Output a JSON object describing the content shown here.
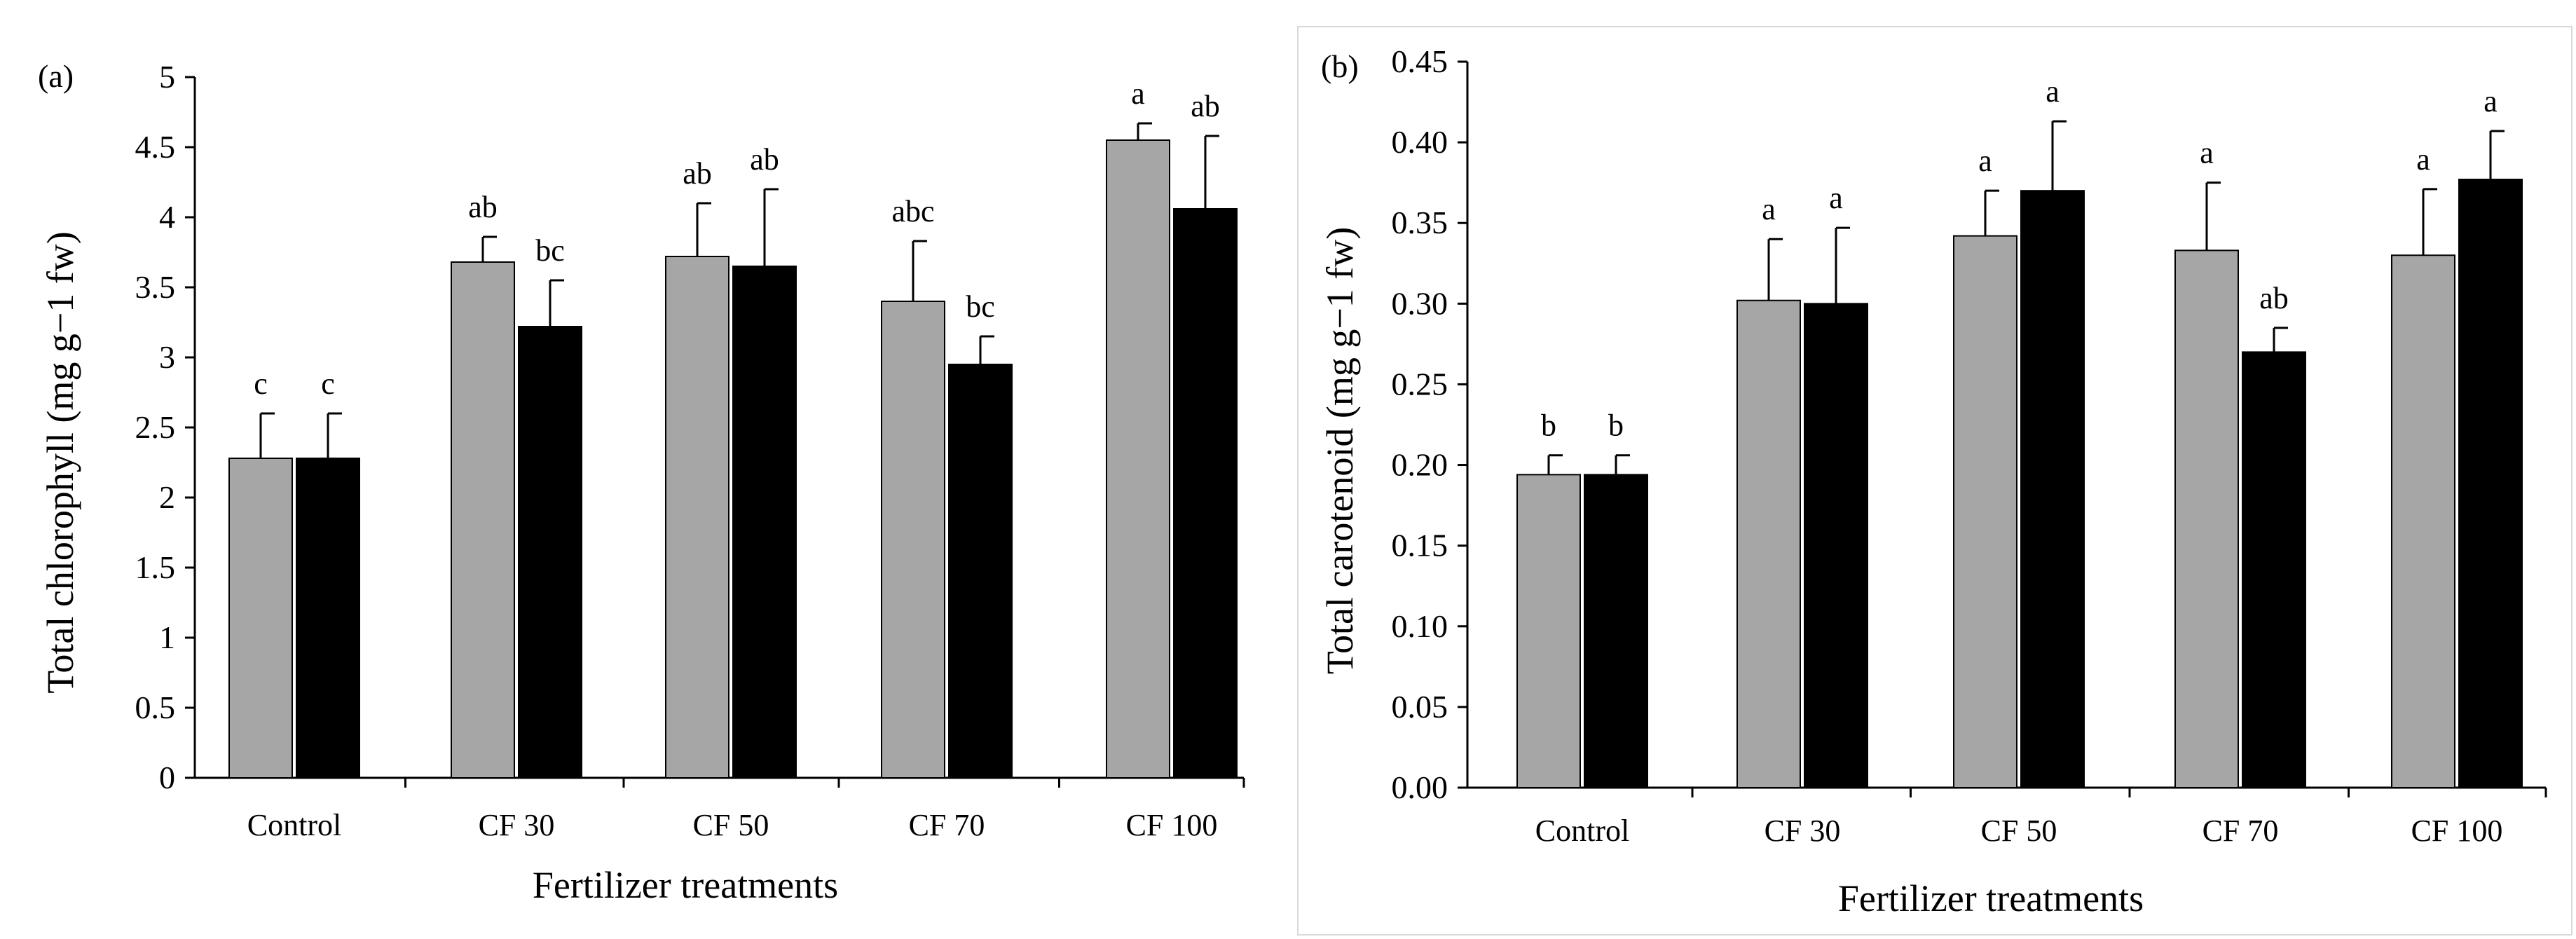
{
  "colors": {
    "series_grey": "#a6a6a6",
    "series_black": "#000000",
    "bar_outline": "#000000"
  },
  "chart_data": [
    {
      "type": "bar",
      "panel_label": "(a)",
      "title": "",
      "xlabel": "Fertilizer treatments",
      "ylabel": "Total chlorophyll (mg g−1 fw)",
      "categories": [
        "Control",
        "CF 30",
        "CF 50",
        "CF 70",
        "CF 100"
      ],
      "ylim": [
        0,
        5
      ],
      "yticks": [
        0,
        0.5,
        1,
        1.5,
        2,
        2.5,
        3,
        3.5,
        4,
        4.5,
        5
      ],
      "ytick_labels": [
        "0",
        "0.5",
        "1",
        "1.5",
        "2",
        "2.5",
        "3",
        "3.5",
        "4",
        "4.5",
        "5"
      ],
      "series": [
        {
          "name": "grey",
          "color": "#a6a6a6",
          "values": [
            2.28,
            3.68,
            3.72,
            3.4,
            4.55
          ],
          "errors": [
            0.32,
            0.18,
            0.38,
            0.43,
            0.12
          ],
          "labels": [
            "c",
            "ab",
            "ab",
            "abc",
            "a"
          ]
        },
        {
          "name": "black",
          "color": "#000000",
          "values": [
            2.28,
            3.22,
            3.65,
            2.95,
            4.06
          ],
          "errors": [
            0.32,
            0.33,
            0.55,
            0.2,
            0.52
          ],
          "labels": [
            "c",
            "bc",
            "ab",
            "bc",
            "ab"
          ]
        }
      ]
    },
    {
      "type": "bar",
      "panel_label": "(b)",
      "title": "",
      "xlabel": "Fertilizer treatments",
      "ylabel": "Total carotenoid (mg g−1 fw)",
      "categories": [
        "Control",
        "CF 30",
        "CF 50",
        "CF 70",
        "CF 100"
      ],
      "ylim": [
        0,
        0.45
      ],
      "yticks": [
        0,
        0.05,
        0.1,
        0.15,
        0.2,
        0.25,
        0.3,
        0.35,
        0.4,
        0.45
      ],
      "ytick_labels": [
        "0.00",
        "0.05",
        "0.10",
        "0.15",
        "0.20",
        "0.25",
        "0.30",
        "0.35",
        "0.40",
        "0.45"
      ],
      "series": [
        {
          "name": "grey",
          "color": "#a6a6a6",
          "values": [
            0.194,
            0.302,
            0.342,
            0.333,
            0.33
          ],
          "errors": [
            0.012,
            0.038,
            0.028,
            0.042,
            0.041
          ],
          "labels": [
            "b",
            "a",
            "a",
            "a",
            "a"
          ]
        },
        {
          "name": "black",
          "color": "#000000",
          "values": [
            0.194,
            0.3,
            0.37,
            0.27,
            0.377
          ],
          "errors": [
            0.012,
            0.047,
            0.043,
            0.015,
            0.03
          ],
          "labels": [
            "b",
            "a",
            "a",
            "ab",
            "a"
          ]
        }
      ]
    }
  ]
}
